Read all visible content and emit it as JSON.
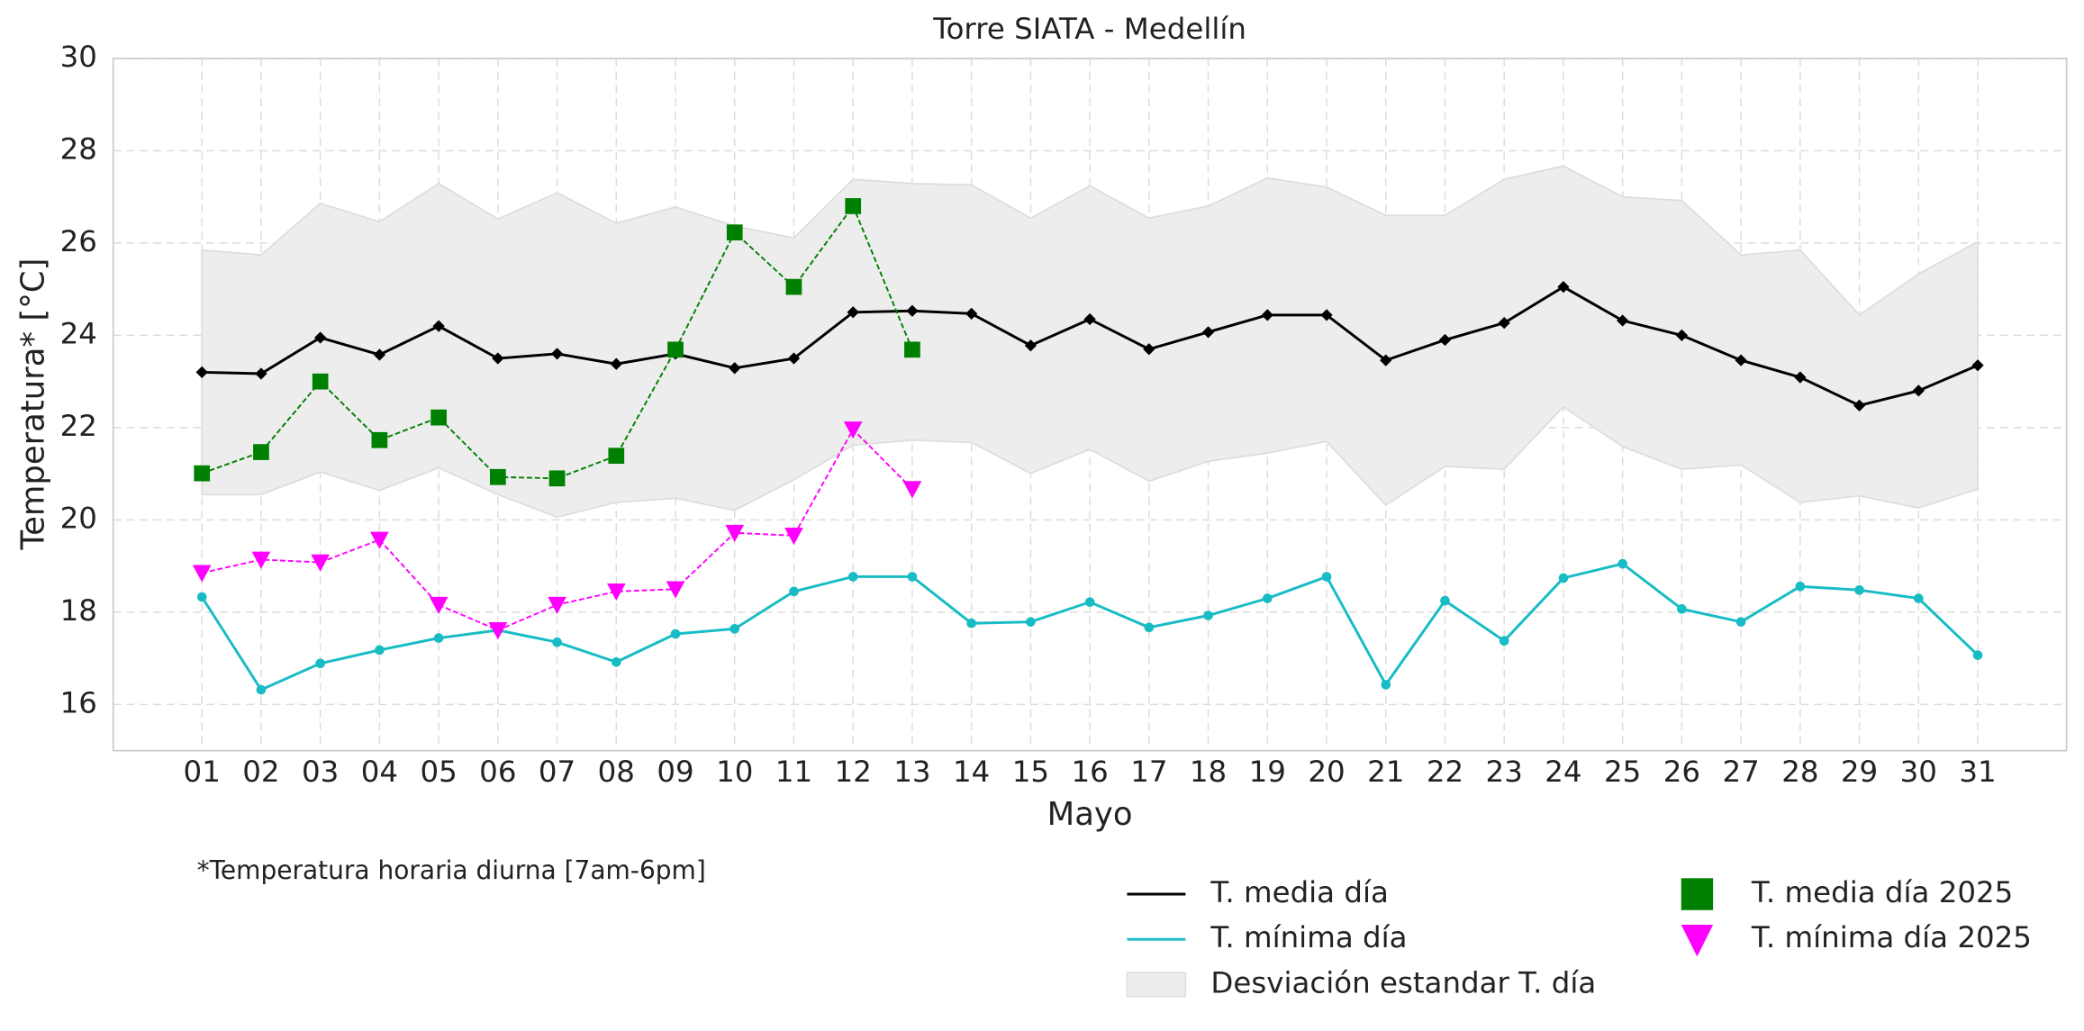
{
  "chart_data": {
    "type": "line",
    "title": "Torre SIATA - Medellín",
    "xlabel": "Mayo",
    "ylabel": "Temperatura* [°C]",
    "annotation": "*Temperatura horaria diurna [7am-6pm]",
    "categories": [
      "01",
      "02",
      "03",
      "04",
      "05",
      "06",
      "07",
      "08",
      "09",
      "10",
      "11",
      "12",
      "13",
      "14",
      "15",
      "16",
      "17",
      "18",
      "19",
      "20",
      "21",
      "22",
      "23",
      "24",
      "25",
      "26",
      "27",
      "28",
      "29",
      "30",
      "31"
    ],
    "ylim": [
      15,
      30
    ],
    "yticks": [
      16,
      18,
      20,
      22,
      24,
      26,
      28,
      30
    ],
    "grid": true,
    "band": {
      "name": "Desviación estandar T. día",
      "color": "#ededed",
      "upper": [
        25.85,
        25.74,
        26.86,
        26.46,
        27.29,
        26.52,
        27.09,
        26.43,
        26.78,
        26.37,
        26.11,
        27.38,
        27.29,
        27.26,
        26.54,
        27.24,
        26.54,
        26.8,
        27.41,
        27.21,
        26.6,
        26.6,
        27.38,
        27.67,
        27.0,
        26.92,
        25.74,
        25.85,
        24.44,
        25.33,
        26.03
      ],
      "lower": [
        20.55,
        20.55,
        21.04,
        20.64,
        21.13,
        20.55,
        20.06,
        20.38,
        20.47,
        20.21,
        20.87,
        21.62,
        21.73,
        21.68,
        21.01,
        21.53,
        20.84,
        21.27,
        21.45,
        21.7,
        20.32,
        21.16,
        21.1,
        22.45,
        21.59,
        21.1,
        21.19,
        20.38,
        20.52,
        20.26,
        20.67
      ]
    },
    "series": [
      {
        "name": "T. media día",
        "color": "#000000",
        "marker": "diamond",
        "linestyle": "solid",
        "values": [
          23.2,
          23.17,
          23.95,
          23.58,
          24.2,
          23.5,
          23.6,
          23.38,
          23.6,
          23.29,
          23.5,
          24.5,
          24.53,
          24.47,
          23.78,
          24.35,
          23.7,
          24.07,
          24.44,
          24.44,
          23.46,
          23.9,
          24.27,
          25.05,
          24.32,
          24.0,
          23.46,
          23.09,
          22.48,
          22.8,
          23.35
        ]
      },
      {
        "name": "T. mínima día",
        "color": "#17bcc4",
        "marker": "circle",
        "linestyle": "solid",
        "values": [
          18.33,
          16.32,
          16.89,
          17.18,
          17.44,
          17.61,
          17.35,
          16.92,
          17.53,
          17.64,
          18.45,
          18.77,
          18.77,
          17.76,
          17.79,
          18.22,
          17.67,
          17.93,
          18.3,
          18.77,
          16.43,
          18.25,
          17.38,
          18.74,
          19.05,
          18.07,
          17.79,
          18.56,
          18.48,
          18.3,
          17.07
        ]
      },
      {
        "name": "T. media día 2025",
        "color": "#008000",
        "marker": "square",
        "linestyle": "dashed",
        "values": [
          21.01,
          21.47,
          23.0,
          21.73,
          22.22,
          20.93,
          20.9,
          21.39,
          23.69,
          26.23,
          25.05,
          26.8,
          23.69,
          null,
          null,
          null,
          null,
          null,
          null,
          null,
          null,
          null,
          null,
          null,
          null,
          null,
          null,
          null,
          null,
          null,
          null
        ]
      },
      {
        "name": "T. mínima día 2025",
        "color": "#ff00ff",
        "marker": "triangle",
        "linestyle": "dashed",
        "values": [
          18.85,
          19.14,
          19.08,
          19.57,
          18.16,
          17.61,
          18.16,
          18.45,
          18.5,
          19.72,
          19.66,
          21.96,
          20.67,
          null,
          null,
          null,
          null,
          null,
          null,
          null,
          null,
          null,
          null,
          null,
          null,
          null,
          null,
          null,
          null,
          null,
          null
        ]
      }
    ]
  }
}
